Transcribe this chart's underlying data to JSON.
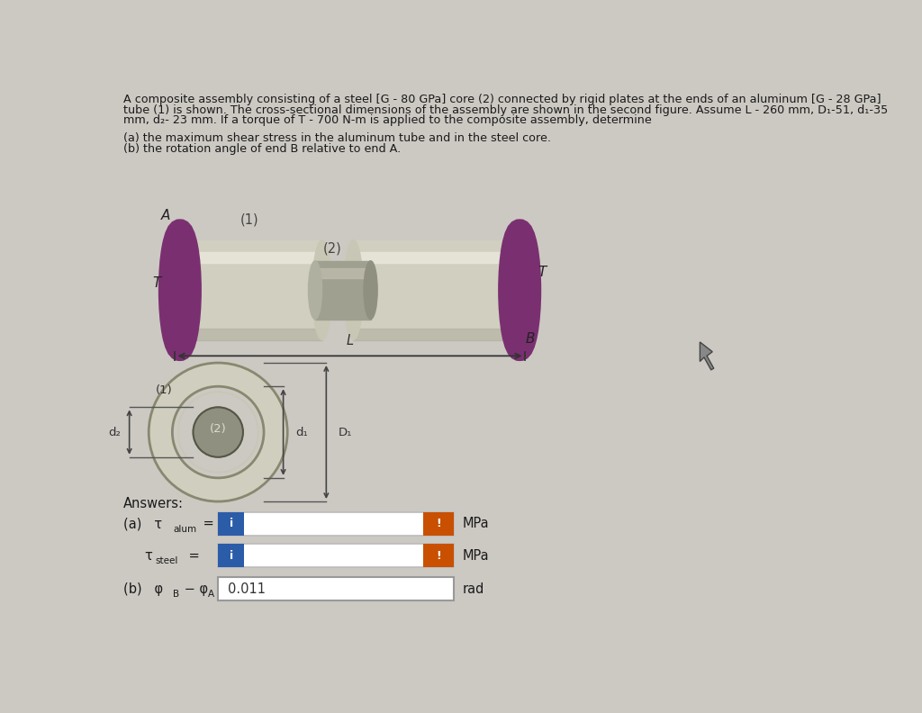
{
  "background_color": "#ccc9c3",
  "title_line1": "A composite assembly consisting of a steel [G - 80 GPa] core (2) connected by rigid plates at the ends of an aluminum [G - 28 GPa]",
  "title_line2": "tube (1) is shown. The cross-sectional dimensions of the assembly are shown in the second figure. Assume L - 260 mm, D₁-51, d₁-35",
  "title_line3": "mm, d₂- 23 mm. If a torque of T - 700 N-m is applied to the composite assembly, determine",
  "sub_a": "(a) the maximum shear stress in the aluminum tube and in the steel core.",
  "sub_b": "(b) the rotation angle of end B relative to end A.",
  "answers_label": "Answers:",
  "ans_b_value": "0.011",
  "ans_b_unit": "rad",
  "blue_color": "#2B5CA8",
  "orange_color": "#C85000",
  "text_color": "#1a1a1a",
  "alum_body": "#d0cfc0",
  "alum_highlight": "#e8e7da",
  "alum_shadow": "#b0af9f",
  "alum_end": "#c8c7b5",
  "flange_color": "#c8b870",
  "flange_dark": "#a89040",
  "steel_col": "#a0a090",
  "steel_highlight": "#c0bfb0",
  "purple_col": "#7a3070",
  "cursor_color": "#555555"
}
